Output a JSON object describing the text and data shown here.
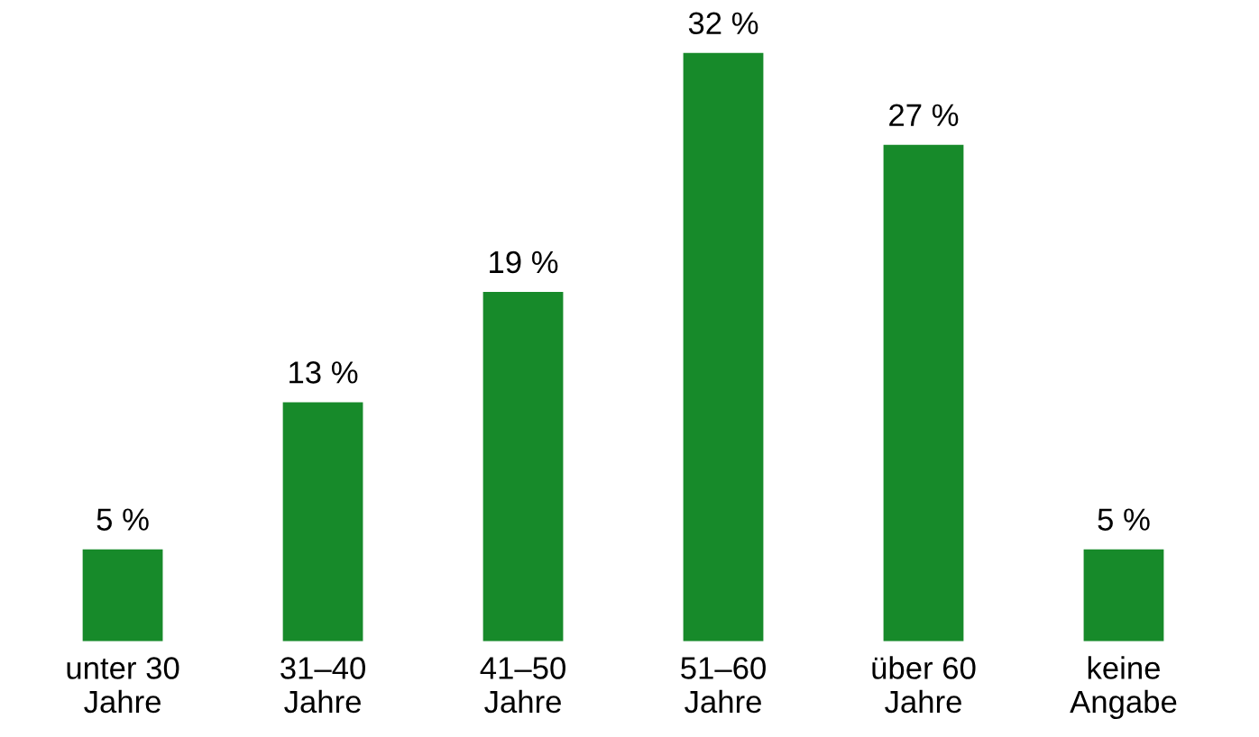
{
  "chart_data": {
    "type": "bar",
    "categories": [
      "unter 30\nJahre",
      "31–40\nJahre",
      "41–50\nJahre",
      "51–60\nJahre",
      "über 60\nJahre",
      "keine\nAngabe"
    ],
    "values": [
      5,
      13,
      19,
      32,
      27,
      5
    ],
    "value_labels": [
      "5 %",
      "13 %",
      "19 %",
      "32 %",
      "27 %",
      "5 %"
    ],
    "color": "#178a2a",
    "grid": false,
    "legend": false,
    "tick_labels": "x"
  }
}
